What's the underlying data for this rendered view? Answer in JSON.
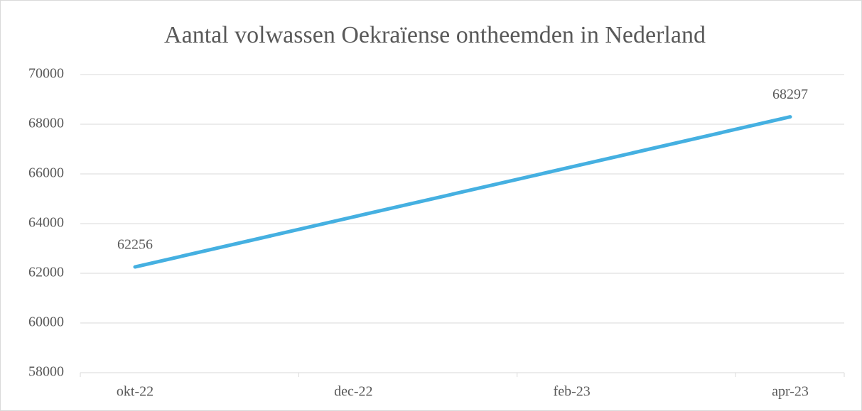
{
  "chart_data": {
    "type": "line",
    "title": "Aantal volwassen Oekraïense ontheemden in Nederland",
    "categories": [
      "okt-22",
      "dec-22",
      "feb-23",
      "apr-23"
    ],
    "series": [
      {
        "name": "Aantal",
        "color": "#45b0e1",
        "values": [
          62256,
          64270,
          66283,
          68297
        ]
      }
    ],
    "ylim": [
      58000,
      70000
    ],
    "yticks": [
      58000,
      60000,
      62000,
      64000,
      66000,
      68000,
      70000
    ],
    "grid": true
  }
}
